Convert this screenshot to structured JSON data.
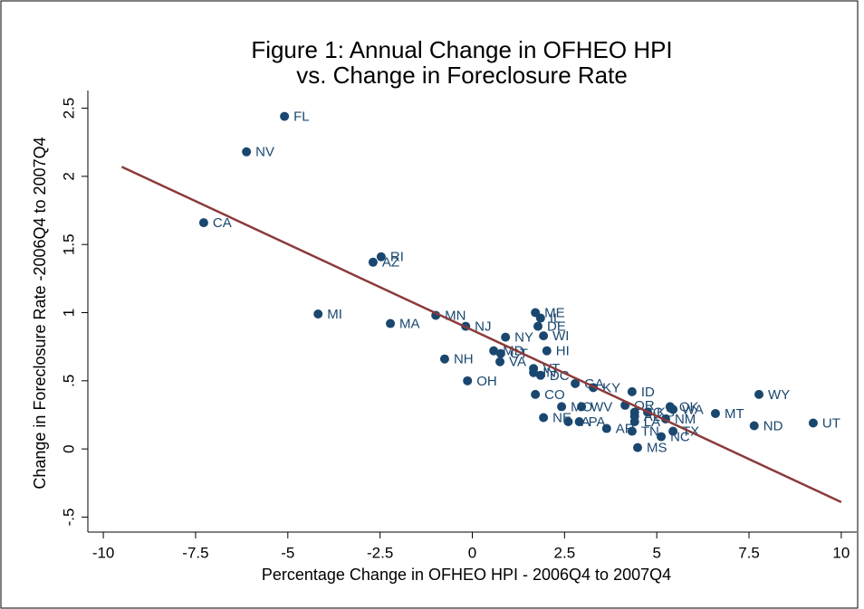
{
  "chart_data": {
    "type": "scatter",
    "title": "Figure 1: Annual Change in OFHEO HPI",
    "subtitle": "vs. Change in Foreclosure Rate",
    "x_label": "Percentage Change in OFHEO HPI - 2006Q4 to 2007Q4",
    "y_label": "Change in Foreclosure Rate -2006Q4 to 2007Q4",
    "color": "#1a476f",
    "series": [
      {
        "name": "States",
        "labels": [
          "FL",
          "NV",
          "CA",
          "RI",
          "AZ",
          "MI",
          "MA",
          "MN",
          "NJ",
          "ME",
          "IL",
          "DE",
          "NY",
          "WI",
          "HI",
          "MD",
          "CT",
          "VA",
          "NH",
          "OH",
          "VT",
          "IN",
          "DC",
          "GA",
          "KY",
          "ID",
          "CO",
          "WY",
          "MO",
          "WV",
          "OR",
          "SC",
          "OK",
          "WA",
          "MT",
          "NM",
          "KS",
          "NE",
          "IA",
          "PA",
          "AR",
          "TN",
          "LA",
          "AL",
          "TX",
          "NC",
          "MS",
          "ND",
          "UT"
        ],
        "x": [
          -5.09,
          -6.12,
          -7.28,
          -2.47,
          -2.69,
          -4.18,
          -2.22,
          -0.99,
          -0.18,
          1.71,
          1.85,
          1.78,
          0.9,
          1.93,
          2.02,
          0.58,
          0.77,
          0.75,
          -0.75,
          -0.13,
          1.66,
          1.66,
          1.85,
          2.79,
          3.28,
          4.33,
          1.71,
          7.77,
          2.42,
          2.96,
          4.14,
          4.4,
          5.36,
          5.44,
          6.59,
          5.24,
          4.75,
          1.93,
          2.6,
          2.9,
          3.64,
          4.33,
          4.4,
          4.4,
          5.44,
          5.12,
          4.48,
          7.64,
          9.24
        ],
        "values": [
          2.44,
          2.18,
          1.66,
          1.41,
          1.37,
          0.99,
          0.92,
          0.98,
          0.9,
          1.0,
          0.96,
          0.9,
          0.82,
          0.83,
          0.72,
          0.72,
          0.7,
          0.64,
          0.66,
          0.5,
          0.59,
          0.56,
          0.54,
          0.48,
          0.45,
          0.42,
          0.4,
          0.4,
          0.31,
          0.31,
          0.32,
          0.27,
          0.31,
          0.29,
          0.26,
          0.22,
          0.27,
          0.23,
          0.2,
          0.2,
          0.15,
          0.13,
          0.2,
          0.24,
          0.13,
          0.09,
          0.01,
          0.17,
          0.19
        ]
      }
    ],
    "fit_line": {
      "color": "#8b3a3a",
      "x": [
        -9.5,
        10
      ],
      "y": [
        2.07,
        -0.39
      ]
    },
    "xlim": [
      -10.42,
      10.42
    ],
    "ylim": [
      -0.61,
      2.63
    ],
    "xticks": [
      -10,
      -7.5,
      -5,
      -2.5,
      0,
      2.5,
      5,
      7.5,
      10
    ],
    "yticks": [
      {
        "value": -0.5,
        "label": "-.5"
      },
      0,
      {
        "value": 0.5,
        "label": ".5"
      },
      1,
      1.5,
      2,
      2.5
    ]
  }
}
